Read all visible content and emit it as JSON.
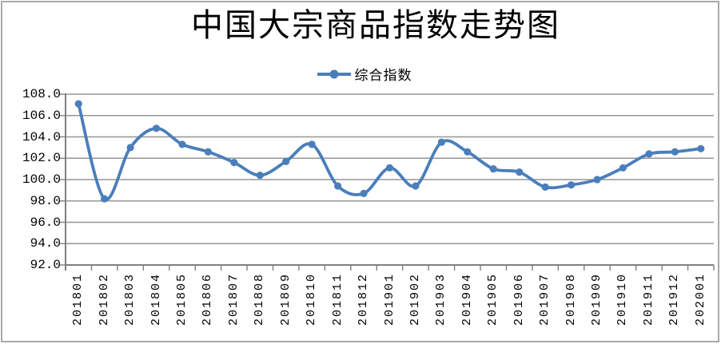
{
  "chart_data": {
    "type": "line",
    "title": "中国大宗商品指数走势图",
    "xlabel": "",
    "ylabel": "",
    "categories": [
      "201801",
      "201802",
      "201803",
      "201804",
      "201805",
      "201806",
      "201807",
      "201808",
      "201809",
      "201810",
      "201811",
      "201812",
      "201901",
      "201902",
      "201903",
      "201904",
      "201905",
      "201906",
      "201907",
      "201908",
      "201909",
      "201910",
      "201911",
      "201912",
      "202001"
    ],
    "series": [
      {
        "name": "综合指数",
        "values": [
          107.1,
          98.2,
          103.0,
          104.8,
          103.3,
          102.6,
          101.6,
          100.4,
          101.7,
          103.3,
          99.4,
          98.7,
          101.1,
          99.4,
          103.5,
          102.6,
          101.0,
          100.7,
          99.3,
          99.5,
          100.0,
          101.1,
          102.4,
          102.6,
          102.9
        ]
      }
    ],
    "ylim": [
      92,
      108
    ],
    "ytick_step": 2,
    "ytick_labels": [
      "92.0",
      "94.0",
      "96.0",
      "98.0",
      "100.0",
      "102.0",
      "104.0",
      "106.0",
      "108.0"
    ],
    "legend_position": "top-center",
    "grid": "horizontal",
    "smooth_line": true,
    "colors": {
      "line": "#4A7EBB",
      "marker": "#4A7EBB",
      "gridline": "#969696",
      "axis": "#808080",
      "text": "#000000",
      "frame_border": "#A9A9A9"
    }
  }
}
